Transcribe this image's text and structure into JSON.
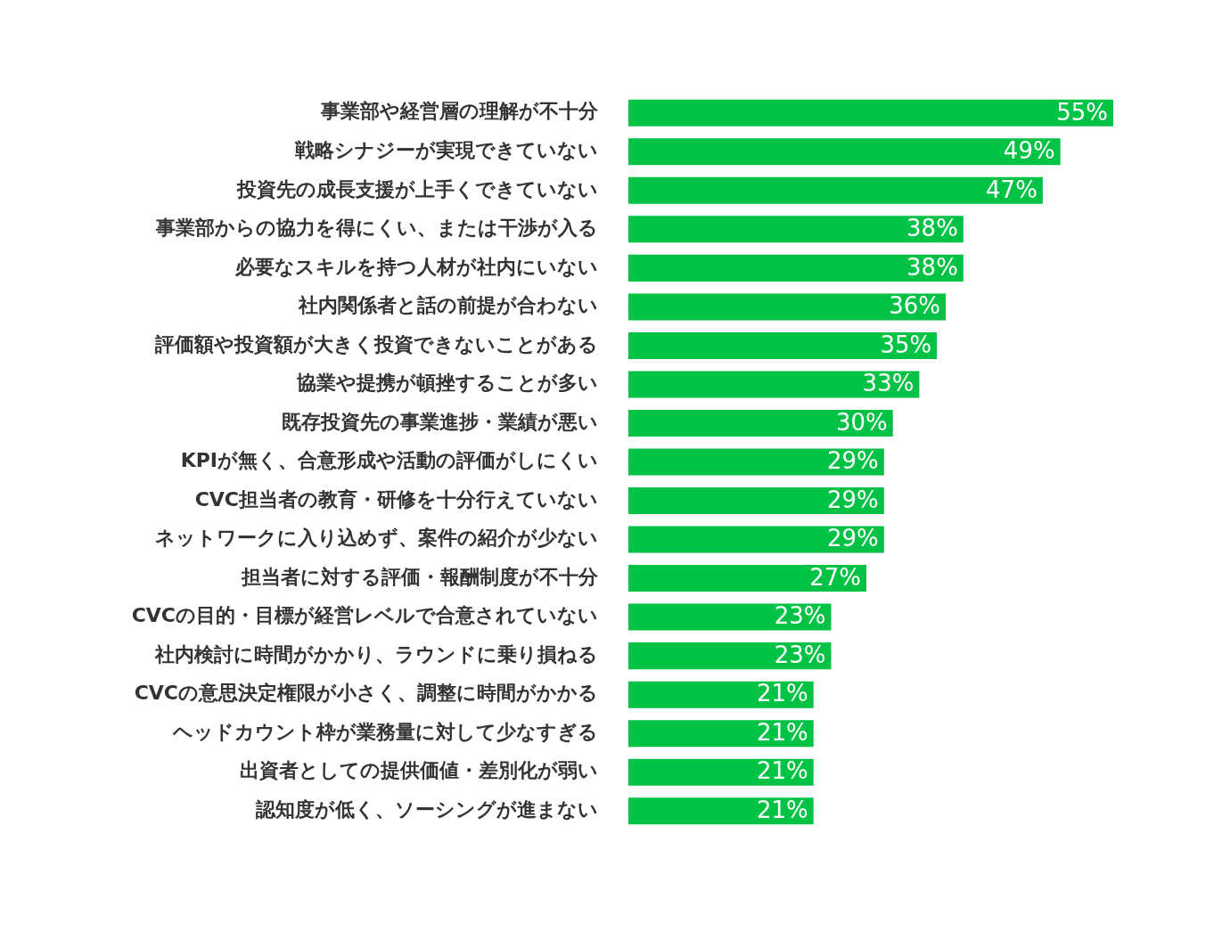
{
  "chart_data": {
    "type": "bar",
    "orientation": "horizontal",
    "categories": [
      "事業部や経営層の理解が不十分",
      "戦略シナジーが実現できていない",
      "投資先の成長支援が上手くできていない",
      "事業部からの協力を得にくい、または干渉が入る",
      "必要なスキルを持つ人材が社内にいない",
      "社内関係者と話の前提が合わない",
      "評価額や投資額が大きく投資できないことがある",
      "協業や提携が頓挫することが多い",
      "既存投資先の事業進捗・業績が悪い",
      "KPIが無く、合意形成や活動の評価がしにくい",
      "CVC担当者の教育・研修を十分行えていない",
      "ネットワークに入り込めず、案件の紹介が少ない",
      "担当者に対する評価・報酬制度が不十分",
      "CVCの目的・目標が経営レベルで合意されていない",
      "社内検討に時間がかかり、ラウンドに乗り損ねる",
      "CVCの意思決定権限が小さく、調整に時間がかかる",
      "ヘッドカウント枠が業務量に対して少なすぎる",
      "出資者としての提供価値・差別化が弱い",
      "認知度が低く、ソーシングが進まない"
    ],
    "values": [
      55,
      49,
      47,
      38,
      38,
      36,
      35,
      33,
      30,
      29,
      29,
      29,
      27,
      23,
      23,
      21,
      21,
      21,
      21
    ],
    "value_labels": [
      "55%",
      "49%",
      "47%",
      "38%",
      "38%",
      "36%",
      "35%",
      "33%",
      "30%",
      "29%",
      "29%",
      "29%",
      "27%",
      "23%",
      "23%",
      "21%",
      "21%",
      "21%",
      "21%"
    ],
    "color": "#00c244",
    "xlim": [
      0,
      55
    ],
    "legend": false,
    "tick_labels": "y"
  }
}
